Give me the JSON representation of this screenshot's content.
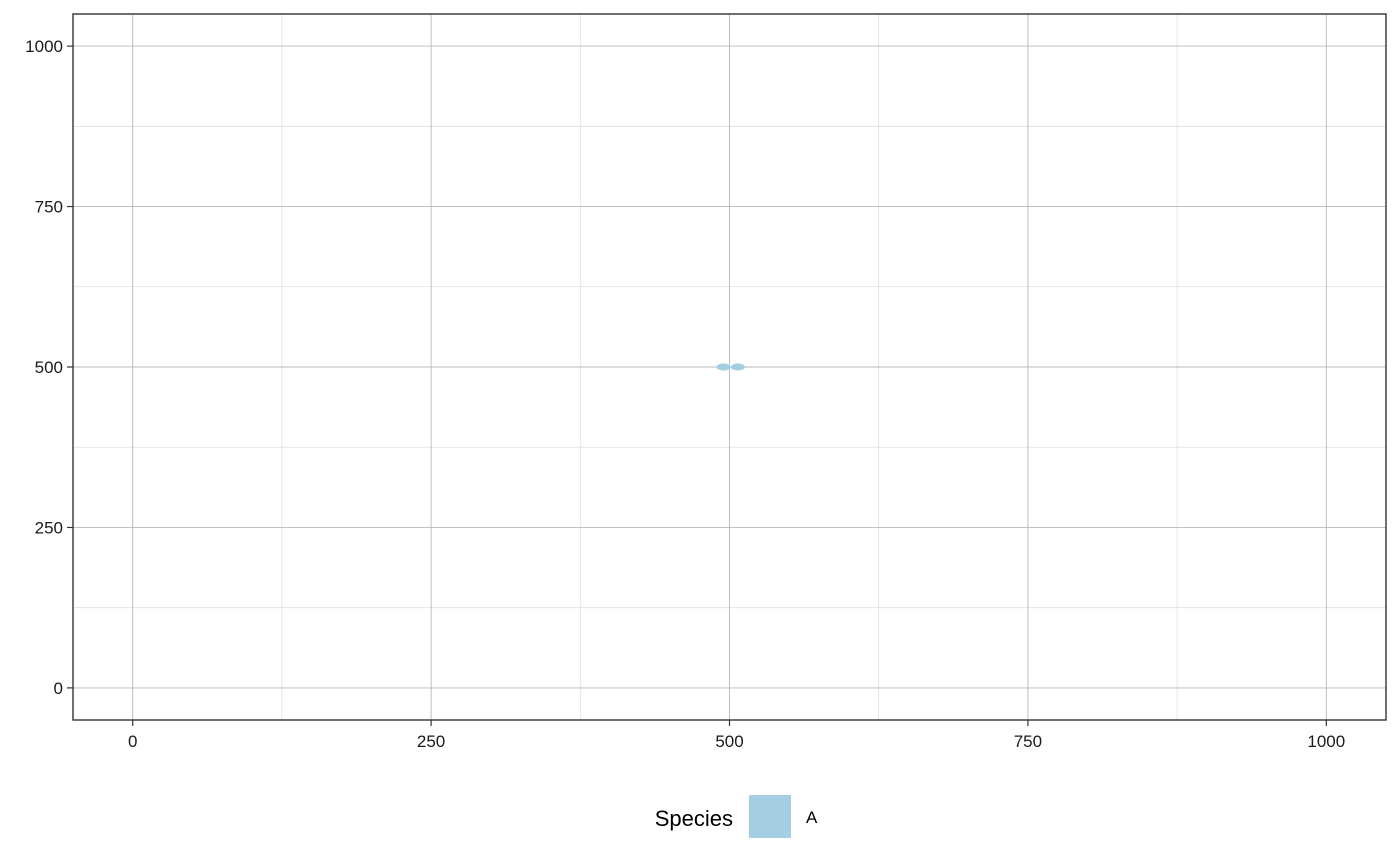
{
  "chart_data": {
    "type": "scatter",
    "xlim": [
      -50,
      1050
    ],
    "ylim": [
      -50,
      1050
    ],
    "x_ticks": [
      0,
      250,
      500,
      750,
      1000
    ],
    "y_ticks": [
      0,
      250,
      500,
      750,
      1000
    ],
    "x_tick_labels": [
      "0",
      "250",
      "500",
      "750",
      "1000"
    ],
    "y_tick_labels": [
      "0",
      "250",
      "500",
      "750",
      "1000"
    ],
    "x_minor_ticks": [
      125,
      375,
      625,
      875
    ],
    "y_minor_ticks": [
      125,
      375,
      625,
      875
    ],
    "grid": true,
    "legend": {
      "title": "Species",
      "position": "bottom",
      "entries": [
        {
          "label": "A",
          "color": "#a6cee3"
        }
      ]
    },
    "series": [
      {
        "name": "A",
        "color": "#a6cee3",
        "points": [
          {
            "x": 495,
            "y": 500
          },
          {
            "x": 507,
            "y": 500
          }
        ]
      }
    ]
  }
}
